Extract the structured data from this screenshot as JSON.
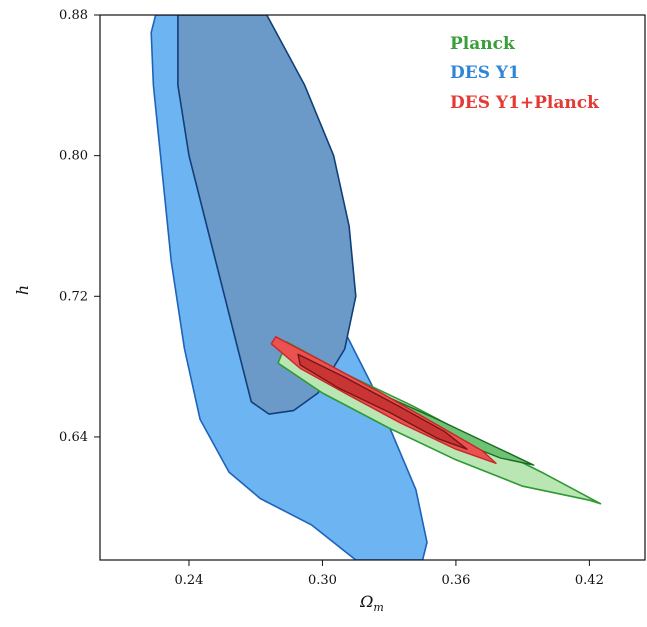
{
  "chart_data": {
    "type": "contour",
    "xlabel": "Ω",
    "xlabel_sub": "m",
    "ylabel": "h",
    "xlim": [
      0.2,
      0.445
    ],
    "ylim": [
      0.57,
      0.88
    ],
    "xticks": [
      "0.24",
      "0.30",
      "0.36",
      "0.42"
    ],
    "yticks": [
      "0.64",
      "0.72",
      "0.80",
      "0.88"
    ],
    "legend": [
      {
        "label": "Planck",
        "color": "#3a9e3a"
      },
      {
        "label": "DES Y1",
        "color": "#2f86d6"
      },
      {
        "label": "DES Y1+Planck",
        "color": "#e53935"
      }
    ],
    "series": [
      {
        "name": "DES Y1",
        "contours": [
          {
            "level": "95%",
            "points": [
              [
                0.225,
                0.88
              ],
              [
                0.252,
                0.88
              ],
              [
                0.256,
                0.87
              ],
              [
                0.26,
                0.85
              ],
              [
                0.265,
                0.82
              ],
              [
                0.275,
                0.79
              ],
              [
                0.285,
                0.76
              ],
              [
                0.298,
                0.73
              ],
              [
                0.31,
                0.7
              ],
              [
                0.322,
                0.67
              ],
              [
                0.332,
                0.64
              ],
              [
                0.342,
                0.61
              ],
              [
                0.347,
                0.58
              ],
              [
                0.345,
                0.57
              ],
              [
                0.315,
                0.57
              ],
              [
                0.295,
                0.59
              ],
              [
                0.272,
                0.605
              ],
              [
                0.258,
                0.62
              ],
              [
                0.245,
                0.65
              ],
              [
                0.238,
                0.69
              ],
              [
                0.232,
                0.74
              ],
              [
                0.228,
                0.79
              ],
              [
                0.224,
                0.84
              ],
              [
                0.223,
                0.87
              ]
            ]
          },
          {
            "level": "68%",
            "points": [
              [
                0.235,
                0.88
              ],
              [
                0.275,
                0.88
              ],
              [
                0.292,
                0.84
              ],
              [
                0.305,
                0.8
              ],
              [
                0.312,
                0.76
              ],
              [
                0.315,
                0.72
              ],
              [
                0.31,
                0.69
              ],
              [
                0.298,
                0.665
              ],
              [
                0.287,
                0.655
              ],
              [
                0.276,
                0.653
              ],
              [
                0.268,
                0.66
              ],
              [
                0.262,
                0.69
              ],
              [
                0.256,
                0.72
              ],
              [
                0.248,
                0.76
              ],
              [
                0.24,
                0.8
              ],
              [
                0.235,
                0.84
              ]
            ]
          }
        ]
      },
      {
        "name": "Planck",
        "contours": [
          {
            "level": "95%",
            "points": [
              [
                0.284,
                0.694
              ],
              [
                0.31,
                0.676
              ],
              [
                0.34,
                0.658
              ],
              [
                0.37,
                0.638
              ],
              [
                0.4,
                0.619
              ],
              [
                0.425,
                0.602
              ],
              [
                0.42,
                0.604
              ],
              [
                0.39,
                0.612
              ],
              [
                0.36,
                0.627
              ],
              [
                0.33,
                0.645
              ],
              [
                0.3,
                0.665
              ],
              [
                0.28,
                0.682
              ]
            ]
          },
          {
            "level": "68%",
            "points": [
              [
                0.295,
                0.684
              ],
              [
                0.32,
                0.668
              ],
              [
                0.35,
                0.651
              ],
              [
                0.38,
                0.633
              ],
              [
                0.395,
                0.624
              ],
              [
                0.38,
                0.628
              ],
              [
                0.35,
                0.643
              ],
              [
                0.32,
                0.66
              ],
              [
                0.295,
                0.677
              ]
            ]
          }
        ]
      },
      {
        "name": "DES Y1+Planck",
        "contours": [
          {
            "level": "95%",
            "points": [
              [
                0.279,
                0.697
              ],
              [
                0.3,
                0.683
              ],
              [
                0.325,
                0.666
              ],
              [
                0.35,
                0.648
              ],
              [
                0.372,
                0.632
              ],
              [
                0.378,
                0.625
              ],
              [
                0.36,
                0.633
              ],
              [
                0.335,
                0.648
              ],
              [
                0.31,
                0.665
              ],
              [
                0.29,
                0.679
              ],
              [
                0.277,
                0.693
              ]
            ]
          },
          {
            "level": "68%",
            "points": [
              [
                0.289,
                0.687
              ],
              [
                0.31,
                0.674
              ],
              [
                0.335,
                0.657
              ],
              [
                0.355,
                0.643
              ],
              [
                0.365,
                0.633
              ],
              [
                0.352,
                0.639
              ],
              [
                0.33,
                0.654
              ],
              [
                0.307,
                0.668
              ],
              [
                0.29,
                0.681
              ]
            ]
          }
        ]
      }
    ]
  }
}
